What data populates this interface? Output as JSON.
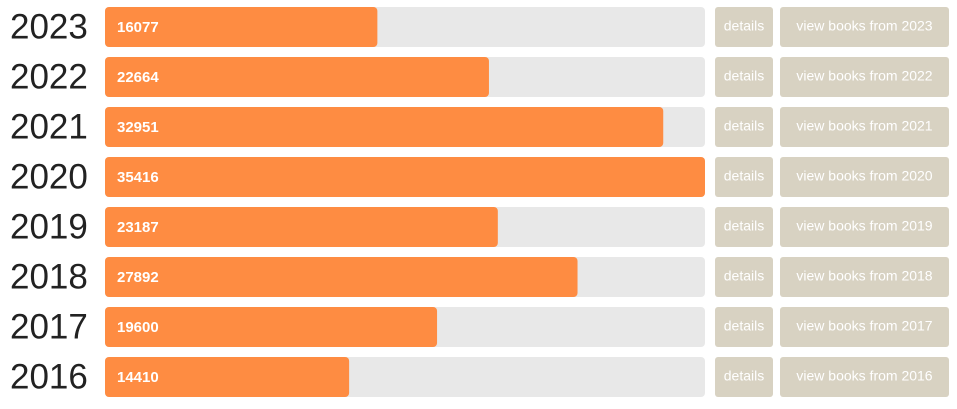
{
  "chart_data": {
    "type": "bar",
    "orientation": "horizontal",
    "categories": [
      "2023",
      "2022",
      "2021",
      "2020",
      "2019",
      "2018",
      "2017",
      "2016"
    ],
    "values": [
      16077,
      22664,
      32951,
      35416,
      23187,
      27892,
      19600,
      14410
    ],
    "color": "#fe8c42",
    "track_color": "#e8e8e8",
    "xlim": [
      0,
      35416
    ]
  },
  "buttons": [
    {
      "details": "details",
      "view": "view books from 2023"
    },
    {
      "details": "details",
      "view": "view books from 2022"
    },
    {
      "details": "details",
      "view": "view books from 2021"
    },
    {
      "details": "details",
      "view": "view books from 2020"
    },
    {
      "details": "details",
      "view": "view books from 2019"
    },
    {
      "details": "details",
      "view": "view books from 2018"
    },
    {
      "details": "details",
      "view": "view books from 2017"
    },
    {
      "details": "details",
      "view": "view books from 2016"
    }
  ]
}
